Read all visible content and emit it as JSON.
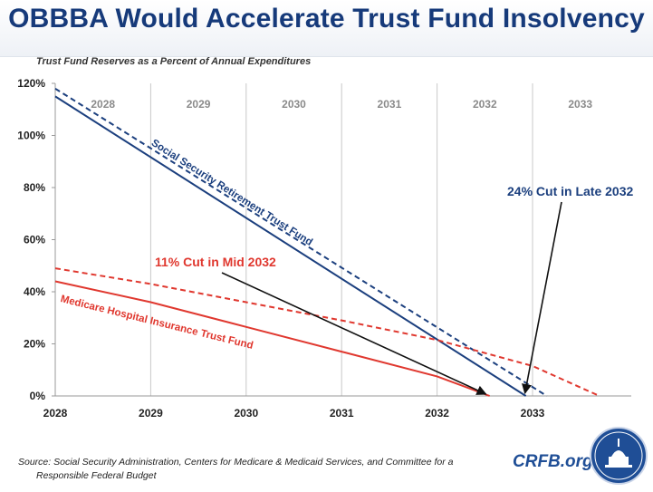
{
  "title": "OBBBA Would Accelerate Trust Fund Insolvency",
  "subtitle": "Trust Fund Reserves as a Percent of Annual Expenditures",
  "source": "Source: Social Security Administration, Centers for Medicare & Medicaid Services, and Committee for a",
  "source2": "Responsible Federal Budget",
  "brand": "CRFB.org",
  "colors": {
    "ss": "#1b3f7e",
    "medicare": "#e0382f",
    "title": "#163a7a"
  },
  "chart_data": {
    "type": "line",
    "xlim": [
      2028,
      2033.95
    ],
    "ylim": [
      0,
      120
    ],
    "x_ticks": [
      "2028",
      "2029",
      "2030",
      "2031",
      "2032",
      "2033"
    ],
    "y_ticks": [
      "0%",
      "20%",
      "40%",
      "60%",
      "80%",
      "100%",
      "120%"
    ],
    "y_tick_values": [
      0,
      20,
      40,
      60,
      80,
      100,
      120
    ],
    "year_bands": [
      "2028",
      "2029",
      "2030",
      "2031",
      "2032",
      "2033"
    ],
    "series": [
      {
        "name": "Social Security Retirement Trust Fund (OBBBA)",
        "style": "solid",
        "color": "#1b3f7e",
        "x": [
          2028,
          2032.93
        ],
        "y": [
          115,
          0
        ]
      },
      {
        "name": "Social Security Retirement Trust Fund (prior law)",
        "style": "dashed",
        "color": "#1b3f7e",
        "x": [
          2028,
          2033.15
        ],
        "y": [
          118,
          0
        ]
      },
      {
        "name": "Medicare Hospital Insurance Trust Fund (OBBBA)",
        "style": "solid",
        "color": "#e0382f",
        "x": [
          2028,
          2029,
          2030,
          2031,
          2032,
          2032.55
        ],
        "y": [
          44,
          36,
          26.5,
          17,
          7.5,
          0
        ]
      },
      {
        "name": "Medicare Hospital Insurance Trust Fund (prior law)",
        "style": "dashed",
        "color": "#e0382f",
        "x": [
          2028,
          2029,
          2030,
          2031,
          2032,
          2033,
          2033.7
        ],
        "y": [
          49,
          43,
          36,
          29,
          21.5,
          11.5,
          0
        ]
      }
    ],
    "series_labels": {
      "ss": "Social Security Retirement Trust Fund",
      "medicare": "Medicare Hospital Insurance Trust Fund"
    },
    "annotations": [
      {
        "text": "11% Cut in Mid 2032",
        "color": "#e0382f",
        "target": [
          2032.55,
          0
        ]
      },
      {
        "text": "24% Cut in Late 2032",
        "color": "#1b3f7e",
        "target": [
          2032.93,
          0
        ]
      }
    ]
  }
}
